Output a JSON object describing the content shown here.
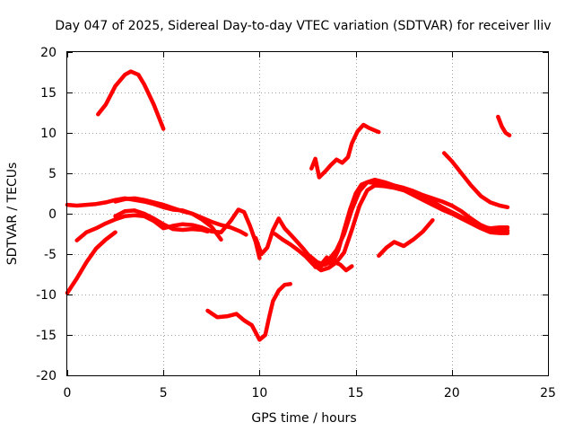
{
  "chart_data": {
    "type": "line",
    "title": "Day 047 of 2025, Sidereal Day-to-day VTEC variation (SDTVAR) for receiver lliv",
    "xlabel": "GPS time / hours",
    "ylabel": "SDTVAR / TECUs",
    "xlim": [
      0,
      25
    ],
    "ylim": [
      -20,
      20
    ],
    "xticks": [
      0,
      5,
      10,
      15,
      20,
      25
    ],
    "yticks": [
      -20,
      -15,
      -10,
      -5,
      0,
      5,
      10,
      15,
      20
    ],
    "grid": true,
    "legend": "none",
    "color": "#ff0000",
    "series": [
      {
        "name": "arc-1",
        "x": [
          1.6,
          2.0,
          2.5,
          3.0,
          3.3,
          3.7,
          4.0,
          4.5,
          5.0
        ],
        "y": [
          12.3,
          13.5,
          15.8,
          17.2,
          17.6,
          17.2,
          16.0,
          13.5,
          10.5
        ]
      },
      {
        "name": "arc-2",
        "x": [
          0.0,
          0.5,
          1.0,
          1.5,
          2.0,
          2.5,
          3.0,
          3.5,
          4.0,
          4.5,
          5.0,
          5.5,
          6.0,
          6.5,
          7.0,
          7.5,
          8.0
        ],
        "y": [
          1.1,
          1.0,
          1.1,
          1.2,
          1.4,
          1.7,
          1.9,
          1.7,
          1.5,
          1.2,
          0.8,
          0.5,
          0.4,
          0.0,
          -0.7,
          -1.6,
          -3.2
        ]
      },
      {
        "name": "arc-3",
        "x": [
          0.5,
          1.0,
          1.5,
          2.0,
          2.5,
          3.0,
          3.5,
          4.0,
          4.5,
          5.0,
          5.5,
          6.0,
          6.5,
          7.0,
          7.5,
          8.0,
          8.5,
          8.9,
          9.2,
          9.5,
          9.8,
          10.0
        ],
        "y": [
          -3.3,
          -2.3,
          -1.8,
          -1.2,
          -0.7,
          -0.3,
          -0.2,
          -0.3,
          -0.9,
          -1.8,
          -1.5,
          -1.3,
          -1.4,
          -1.7,
          -2.2,
          -2.3,
          -0.9,
          0.5,
          0.2,
          -1.5,
          -3.5,
          -5.5
        ]
      },
      {
        "name": "arc-4",
        "x": [
          0.0,
          0.5,
          1.0,
          1.5,
          2.0,
          2.5
        ],
        "y": [
          -9.8,
          -8.0,
          -6.0,
          -4.3,
          -3.2,
          -2.3
        ]
      },
      {
        "name": "arc-5",
        "x": [
          2.5,
          3.0,
          3.5,
          4.0,
          4.5,
          5.0,
          5.5,
          6.0,
          6.5,
          7.0,
          7.3
        ],
        "y": [
          -0.3,
          0.3,
          0.4,
          0.0,
          -0.6,
          -1.3,
          -1.9,
          -2.0,
          -1.9,
          -2.0,
          -2.2
        ]
      },
      {
        "name": "arc-6",
        "x": [
          2.5,
          3.0,
          3.5,
          4.0,
          4.5,
          5.0,
          5.5,
          6.0,
          6.5,
          7.0,
          7.5,
          8.0,
          8.5,
          9.0,
          9.3
        ],
        "y": [
          1.5,
          1.8,
          1.9,
          1.7,
          1.4,
          1.1,
          0.7,
          0.3,
          0.0,
          -0.5,
          -1.0,
          -1.4,
          -1.7,
          -2.2,
          -2.6
        ]
      },
      {
        "name": "arc-7",
        "x": [
          7.3,
          7.8,
          8.3,
          8.8,
          9.2,
          9.6,
          10.0,
          10.3,
          10.5,
          10.7,
          11.0,
          11.3,
          11.6
        ],
        "y": [
          -12.0,
          -12.8,
          -12.7,
          -12.4,
          -13.2,
          -13.8,
          -15.6,
          -15.0,
          -12.8,
          -10.8,
          -9.5,
          -8.8,
          -8.7
        ]
      },
      {
        "name": "arc-8",
        "x": [
          9.8,
          10.1,
          10.4,
          10.7,
          11.0,
          11.3,
          11.7,
          12.0,
          12.3,
          12.6,
          12.9,
          13.2,
          13.5,
          13.8,
          14.1,
          14.4,
          14.7,
          15.0,
          15.3,
          15.6,
          16.0,
          16.5,
          17.0,
          17.5,
          18.0,
          18.5,
          19.0,
          19.5,
          20.0,
          20.5,
          21.0,
          21.5,
          22.0,
          22.5,
          22.9
        ],
        "y": [
          -3.0,
          -5.0,
          -4.2,
          -2.0,
          -0.6,
          -1.8,
          -2.8,
          -3.6,
          -4.4,
          -5.3,
          -6.6,
          -6.3,
          -5.4,
          -6.0,
          -4.5,
          -2.0,
          0.5,
          2.5,
          3.6,
          3.9,
          3.8,
          3.5,
          3.3,
          3.1,
          2.6,
          2.0,
          1.5,
          0.8,
          0.2,
          -0.4,
          -1.0,
          -1.6,
          -1.8,
          -1.7,
          -1.7
        ]
      },
      {
        "name": "arc-9",
        "x": [
          10.8,
          11.2,
          11.6,
          12.0,
          12.4,
          12.8,
          13.2,
          13.6,
          14.0,
          14.4,
          14.8,
          15.2,
          15.6,
          16.0,
          16.5,
          17.0,
          17.5,
          18.0,
          18.5,
          19.0,
          19.5,
          20.0,
          20.5,
          21.0,
          21.5,
          22.0,
          22.5,
          22.9
        ],
        "y": [
          -2.5,
          -3.2,
          -3.8,
          -4.5,
          -5.3,
          -6.3,
          -7.0,
          -6.7,
          -6.0,
          -4.8,
          -2.0,
          1.0,
          2.9,
          3.5,
          3.4,
          3.2,
          2.9,
          2.3,
          1.7,
          1.1,
          0.5,
          0.0,
          -0.6,
          -1.2,
          -1.8,
          -2.3,
          -2.4,
          -2.4
        ]
      },
      {
        "name": "arc-10",
        "x": [
          12.4,
          12.8,
          13.2,
          13.6,
          14.0,
          14.4,
          14.8,
          15.2,
          15.6,
          16.0,
          16.5,
          17.0,
          17.5,
          18.0,
          18.5,
          19.0,
          19.5,
          20.0,
          20.5,
          21.0,
          21.5,
          22.0,
          22.5,
          22.9
        ],
        "y": [
          -4.8,
          -5.8,
          -6.5,
          -5.7,
          -4.5,
          -2.5,
          0.5,
          2.8,
          3.9,
          4.2,
          3.9,
          3.5,
          3.2,
          2.8,
          2.3,
          1.9,
          1.5,
          1.0,
          0.3,
          -0.6,
          -1.4,
          -1.9,
          -2.1,
          -2.1
        ]
      },
      {
        "name": "arc-11",
        "x": [
          12.6,
          13.0,
          13.4,
          13.8,
          14.2,
          14.5,
          14.8
        ],
        "y": [
          -5.2,
          -6.0,
          -6.3,
          -5.9,
          -6.3,
          -7.0,
          -6.5
        ]
      },
      {
        "name": "arc-12",
        "x": [
          12.7,
          12.9,
          13.1,
          13.4,
          13.7,
          14.0,
          14.3,
          14.6,
          14.8,
          15.1,
          15.4,
          15.7,
          16.0,
          16.2
        ],
        "y": [
          5.6,
          6.8,
          4.5,
          5.2,
          6.0,
          6.7,
          6.3,
          7.0,
          8.7,
          10.2,
          11.0,
          10.6,
          10.3,
          10.1
        ]
      },
      {
        "name": "arc-13",
        "x": [
          16.2,
          16.6,
          17.0,
          17.5,
          18.0,
          18.5,
          19.0
        ],
        "y": [
          -5.2,
          -4.2,
          -3.5,
          -4.0,
          -3.2,
          -2.2,
          -0.8
        ]
      },
      {
        "name": "arc-14",
        "x": [
          19.6,
          20.0,
          20.5,
          21.0,
          21.5,
          22.0,
          22.5,
          22.9
        ],
        "y": [
          7.5,
          6.5,
          5.0,
          3.5,
          2.2,
          1.4,
          1.0,
          0.8
        ]
      },
      {
        "name": "arc-15",
        "x": [
          22.4,
          22.6,
          22.8,
          23.0
        ],
        "y": [
          12.0,
          10.8,
          10.0,
          9.7
        ]
      }
    ]
  }
}
